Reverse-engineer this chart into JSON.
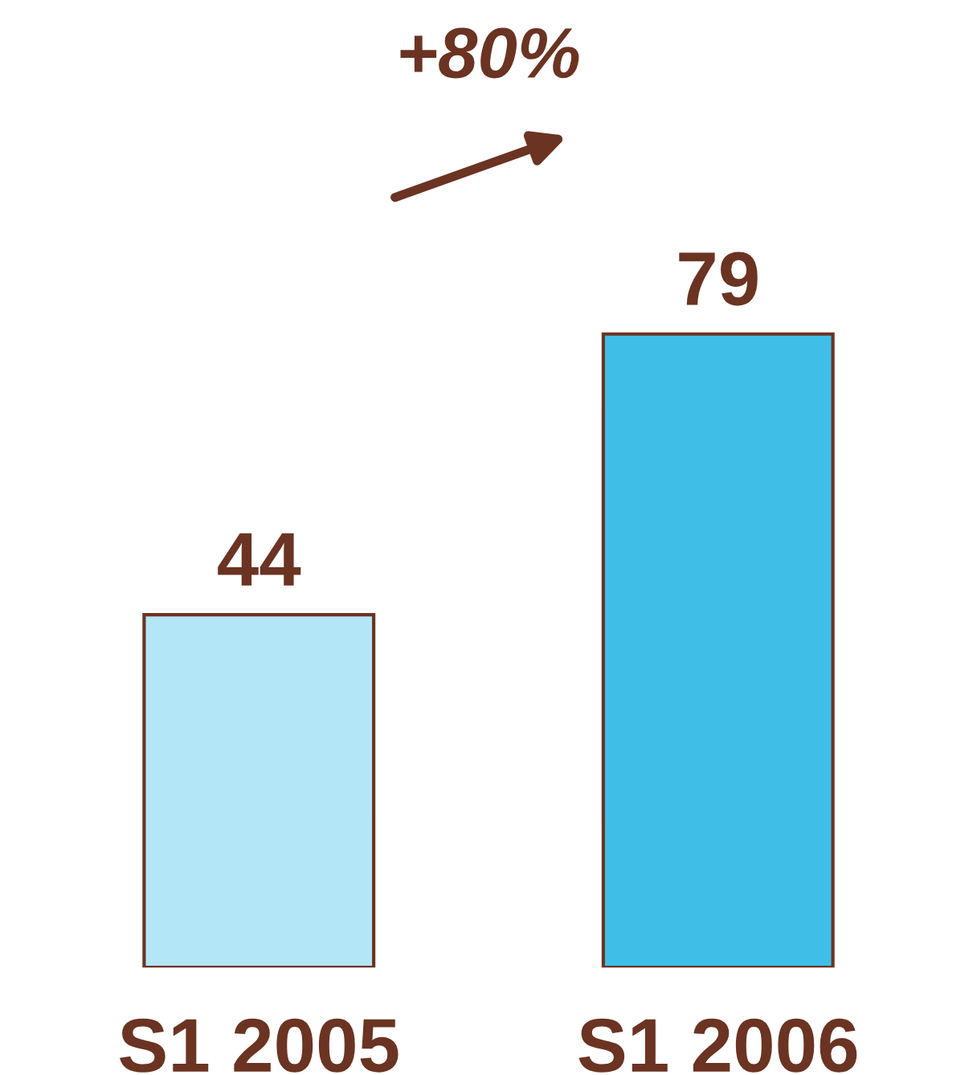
{
  "chart_data": {
    "type": "bar",
    "categories": [
      "S1 2005",
      "S1 2006"
    ],
    "values": [
      44,
      79
    ],
    "colors": [
      "#b3e6f7",
      "#3fbfe8"
    ],
    "data_labels": true,
    "annotations": [
      "+80%"
    ]
  }
}
